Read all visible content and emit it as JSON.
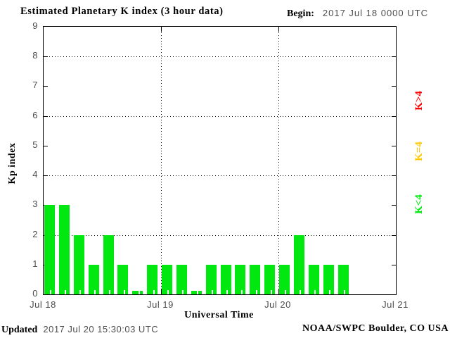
{
  "title": "Estimated Planetary K index (3 hour data)",
  "begin": {
    "label": "Begin:",
    "value": "2017 Jul 18 0000 UTC"
  },
  "footer": {
    "updated_label": "Updated",
    "updated_value": "2017 Jul 20 15:30:03 UTC",
    "credit": "NOAA/SWPC Boulder, CO USA"
  },
  "chart_data": {
    "type": "bar",
    "title": "Estimated Planetary K index (3 hour data)",
    "xlabel": "Universal Time",
    "ylabel": "Kp index",
    "ylim": [
      0,
      9
    ],
    "yticks": [
      0,
      1,
      2,
      3,
      4,
      5,
      6,
      7,
      8,
      9
    ],
    "grid_y": [
      2,
      4,
      6,
      8
    ],
    "grid_style": "dotted",
    "x_day_labels": [
      "Jul 18",
      "Jul 19",
      "Jul 20",
      "Jul 21"
    ],
    "hours_per_bar": 3,
    "bars_per_day": 8,
    "total_slots": 24,
    "values": [
      3,
      3,
      2,
      1,
      2,
      1,
      0,
      1,
      1,
      1,
      0,
      1,
      1,
      1,
      1,
      1,
      1,
      2,
      1,
      1,
      1
    ],
    "bar_color": "#00e810",
    "axis_text_color": "#4d4d4d",
    "legend_position": "right",
    "legend": [
      {
        "label": "K>4",
        "color": "#ff0000"
      },
      {
        "label": "K=4",
        "color": "#ffc800"
      },
      {
        "label": "K<4",
        "color": "#00e810"
      }
    ]
  }
}
